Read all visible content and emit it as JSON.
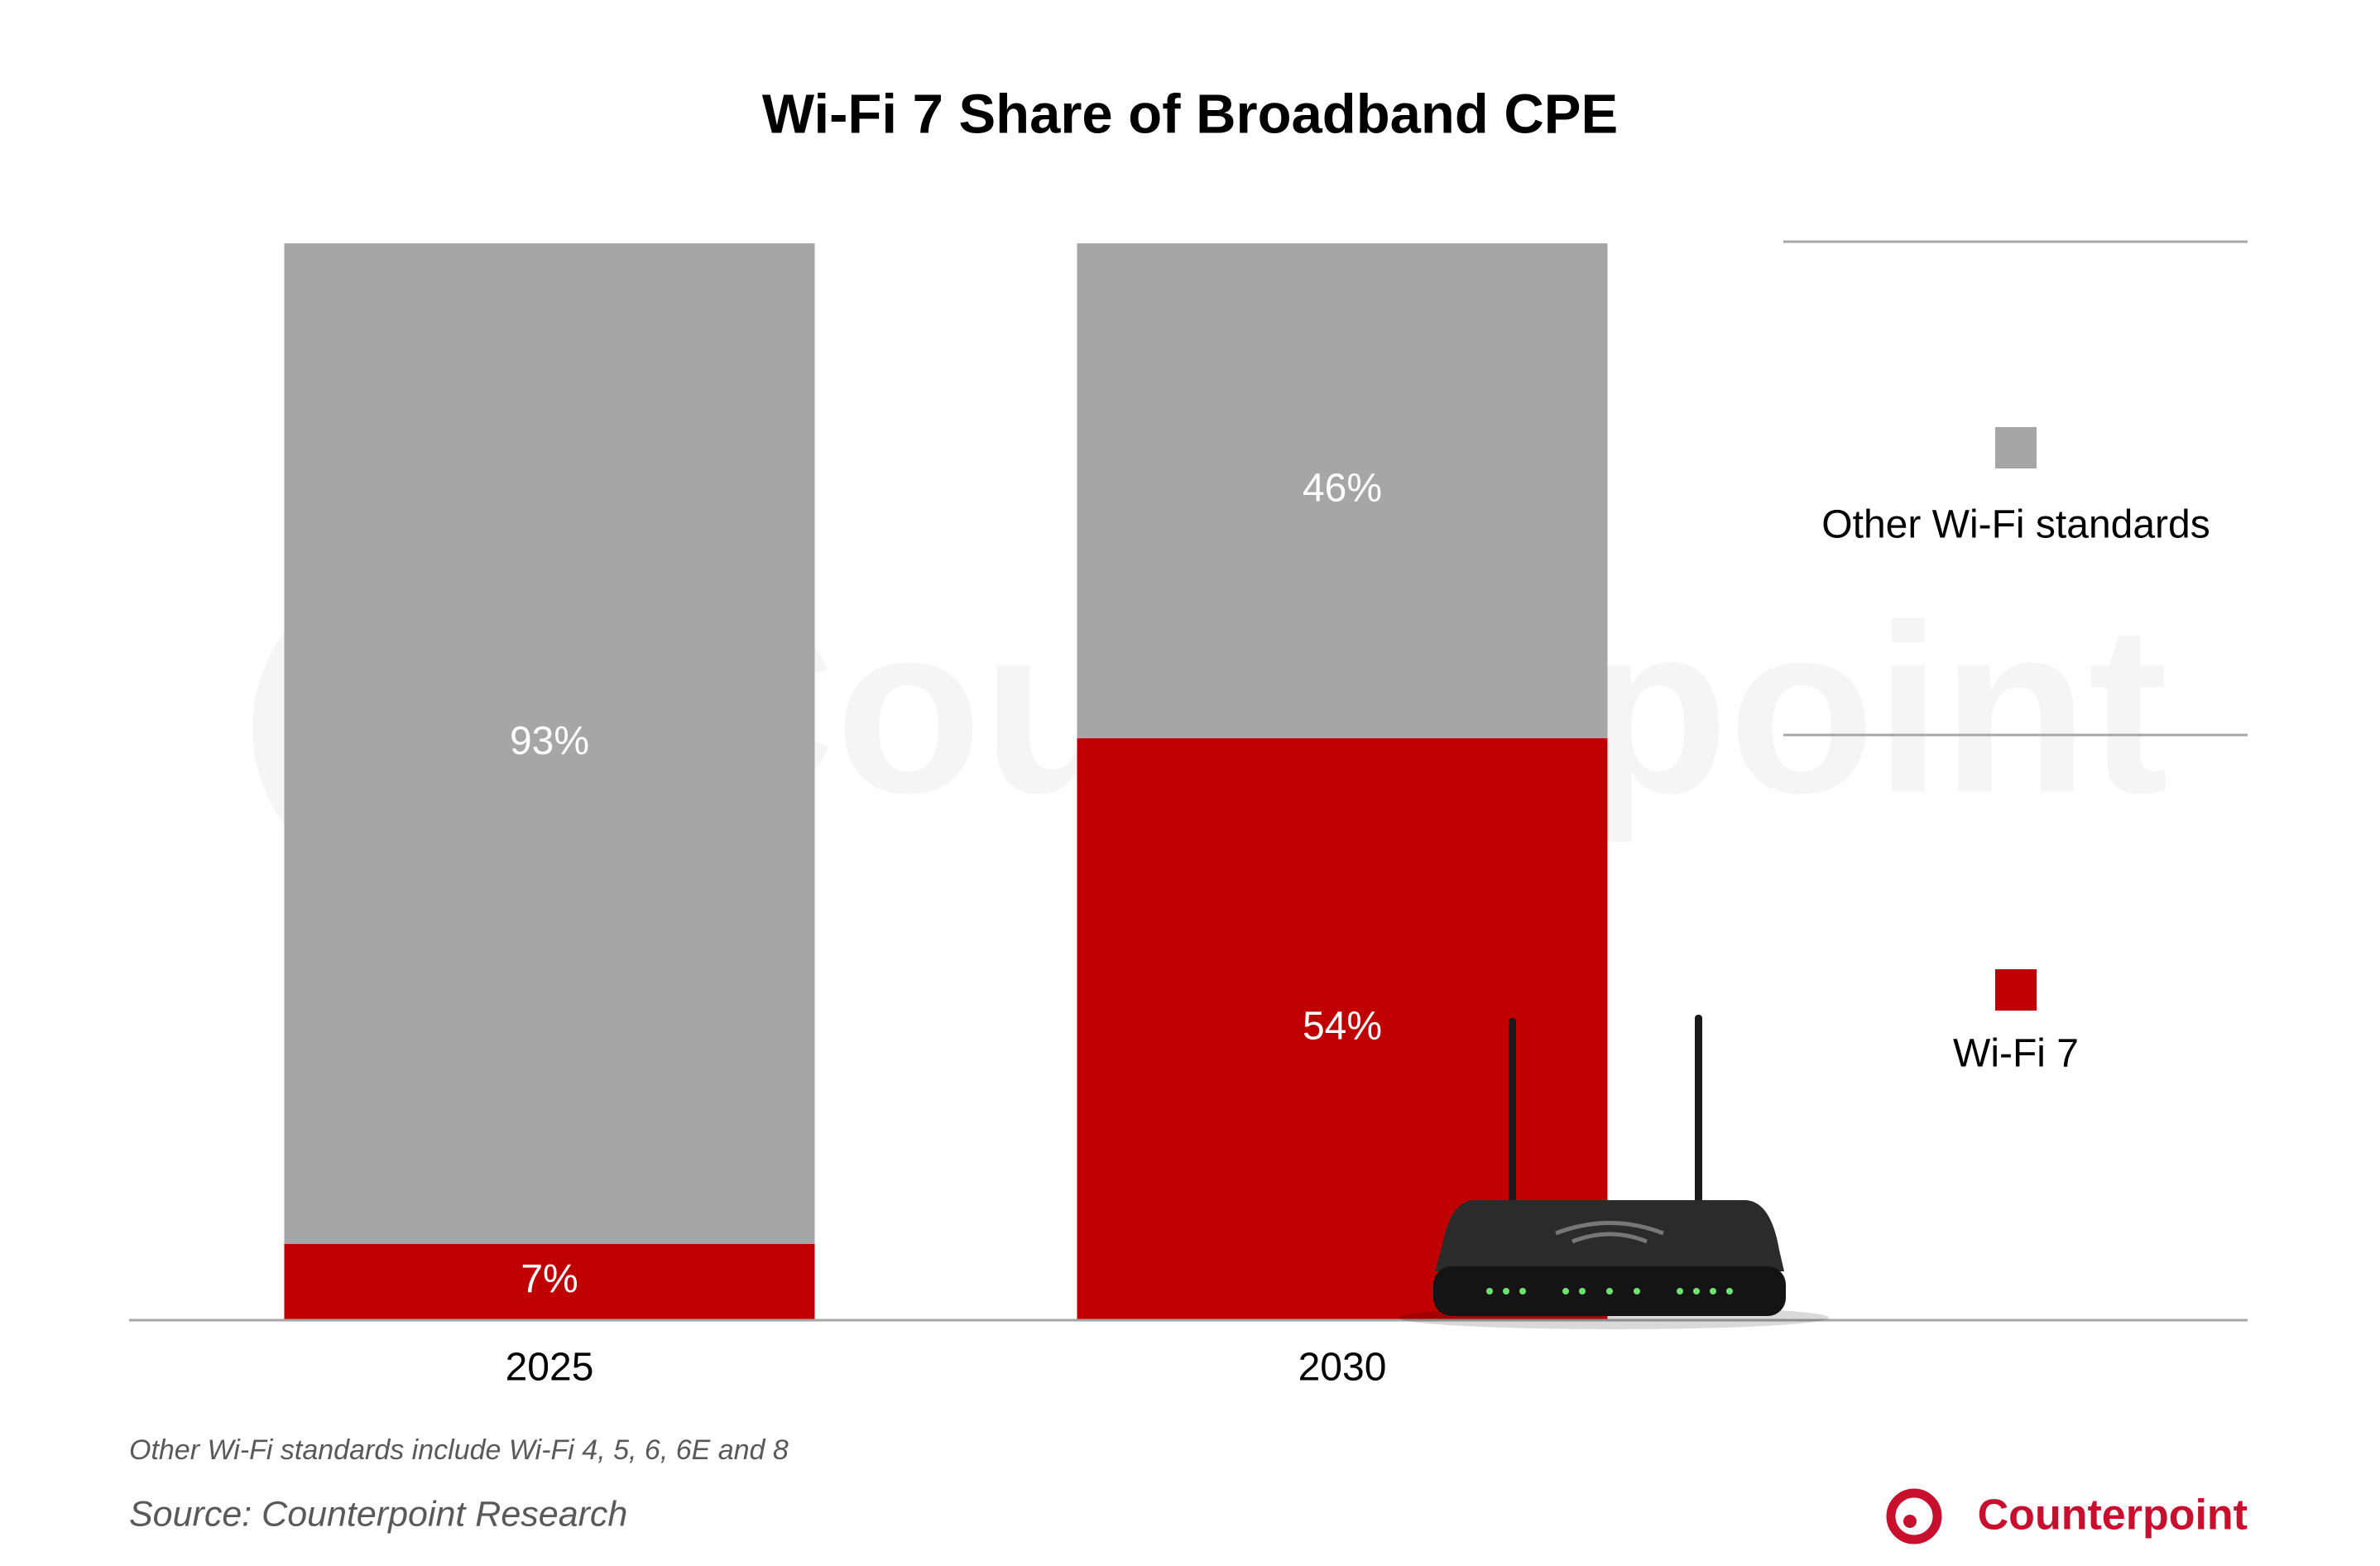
{
  "chart_data": {
    "type": "stacked_bar",
    "title": "Wi-Fi 7 Share of Broadband CPE",
    "categories": [
      "2025",
      "2030"
    ],
    "series": [
      {
        "name": "Wi-Fi 7",
        "color": "#c00000",
        "values": [
          7,
          54
        ],
        "value_labels": [
          "7%",
          "54%"
        ]
      },
      {
        "name": "Other Wi-Fi standards",
        "color": "#a6a6a6",
        "values": [
          93,
          46
        ],
        "value_labels": [
          "93%",
          "46%"
        ]
      }
    ],
    "ylim": [
      0,
      100
    ],
    "legend": "right",
    "watermark": "Counterpoint",
    "footnote": "Other Wi-Fi standards include Wi-Fi 4, 5, 6, 6E and 8",
    "source": "Source: Counterpoint Research",
    "logo": "Counterpoint"
  }
}
